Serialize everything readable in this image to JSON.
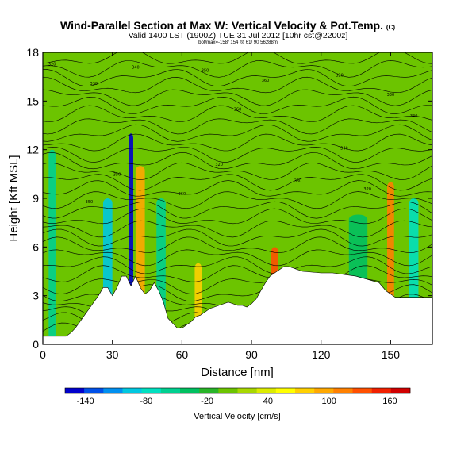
{
  "chart_data": {
    "type": "heatmap",
    "title": "Wind-Parallel Section at Max W: Vertical Velocity & Pot.Temp.",
    "title_mark": "(C)",
    "subtitle": "Valid 1400 LST (1900Z) TUE 31 Jul 2012 [10hr cst@2200z]",
    "subtitle2": "bot/max=-158/ 154 @ 61/ 90 56288m",
    "xlabel": "Distance [nm]",
    "ylabel": "Height [Kft MSL]",
    "xlim": [
      0,
      168
    ],
    "ylim": [
      0,
      18
    ],
    "x_ticks": [
      0,
      30,
      60,
      90,
      120,
      150
    ],
    "y_ticks": [
      0,
      3,
      6,
      9,
      12,
      15,
      18
    ],
    "colorbar": {
      "title": "Vertical Velocity [cm/s]",
      "labels": [
        "-140",
        "-80",
        "-20",
        "40",
        "100",
        "160"
      ],
      "label_values": [
        -140,
        -80,
        -20,
        40,
        100,
        160
      ],
      "range": [
        -160,
        180
      ],
      "colors": [
        "#0000cc",
        "#0050e8",
        "#0090f0",
        "#00c8e0",
        "#00e0c0",
        "#00d090",
        "#00c060",
        "#28b428",
        "#6cc400",
        "#a8d800",
        "#dcec00",
        "#ffff00",
        "#ffd000",
        "#ffa800",
        "#ff8000",
        "#ff5000",
        "#f02000",
        "#d00000"
      ]
    },
    "terrain": {
      "x_nm": [
        0,
        10,
        12,
        14,
        16,
        18,
        20,
        22,
        24,
        26,
        28,
        30,
        32,
        34,
        36,
        38,
        40,
        42,
        44,
        46,
        48,
        50,
        52,
        54,
        56,
        58,
        60,
        64,
        66,
        68,
        70,
        72,
        74,
        76,
        78,
        80,
        82,
        84,
        86,
        88,
        90,
        92,
        94,
        96,
        98,
        100,
        102,
        104,
        106,
        108,
        110,
        112,
        120,
        125,
        130,
        135,
        140,
        145,
        148,
        152,
        160,
        168
      ],
      "height_kft": [
        0.5,
        0.5,
        0.7,
        1.0,
        1.4,
        1.8,
        2.2,
        2.6,
        3.0,
        3.5,
        3.5,
        3.0,
        3.5,
        4.2,
        4.2,
        3.6,
        4.2,
        3.5,
        3.1,
        3.3,
        3.8,
        3.3,
        2.6,
        1.6,
        1.3,
        1.0,
        1.0,
        1.4,
        1.7,
        1.8,
        2.0,
        2.2,
        2.3,
        2.4,
        2.5,
        2.6,
        2.5,
        2.4,
        2.4,
        2.3,
        2.5,
        2.8,
        3.3,
        3.8,
        4.2,
        4.4,
        4.6,
        4.8,
        4.8,
        4.7,
        4.6,
        4.5,
        4.4,
        4.4,
        4.3,
        4.2,
        4.0,
        3.8,
        3.3,
        2.9,
        2.9,
        2.9
      ]
    },
    "velocity_features": [
      {
        "x_nm": 4,
        "width_nm": 3,
        "height_kft": 12,
        "value_cm_s": -60
      },
      {
        "x_nm": 28,
        "width_nm": 4,
        "height_kft": 9,
        "value_cm_s": -90
      },
      {
        "x_nm": 38,
        "width_nm": 2,
        "height_kft": 13,
        "value_cm_s": -154
      },
      {
        "x_nm": 42,
        "width_nm": 4,
        "height_kft": 11,
        "value_cm_s": 100
      },
      {
        "x_nm": 51,
        "width_nm": 4,
        "height_kft": 9,
        "value_cm_s": -50
      },
      {
        "x_nm": 67,
        "width_nm": 3,
        "height_kft": 5,
        "value_cm_s": 80
      },
      {
        "x_nm": 100,
        "width_nm": 3,
        "height_kft": 6,
        "value_cm_s": 140
      },
      {
        "x_nm": 100,
        "width_nm": 2,
        "height_kft": 3.5,
        "value_cm_s": 154
      },
      {
        "x_nm": 136,
        "width_nm": 8,
        "height_kft": 8,
        "value_cm_s": -30
      },
      {
        "x_nm": 150,
        "width_nm": 3,
        "height_kft": 10,
        "value_cm_s": 110
      },
      {
        "x_nm": 160,
        "width_nm": 4,
        "height_kft": 9,
        "value_cm_s": -70
      }
    ],
    "contour_labels": [
      "320",
      "330",
      "340",
      "350",
      "360"
    ]
  }
}
